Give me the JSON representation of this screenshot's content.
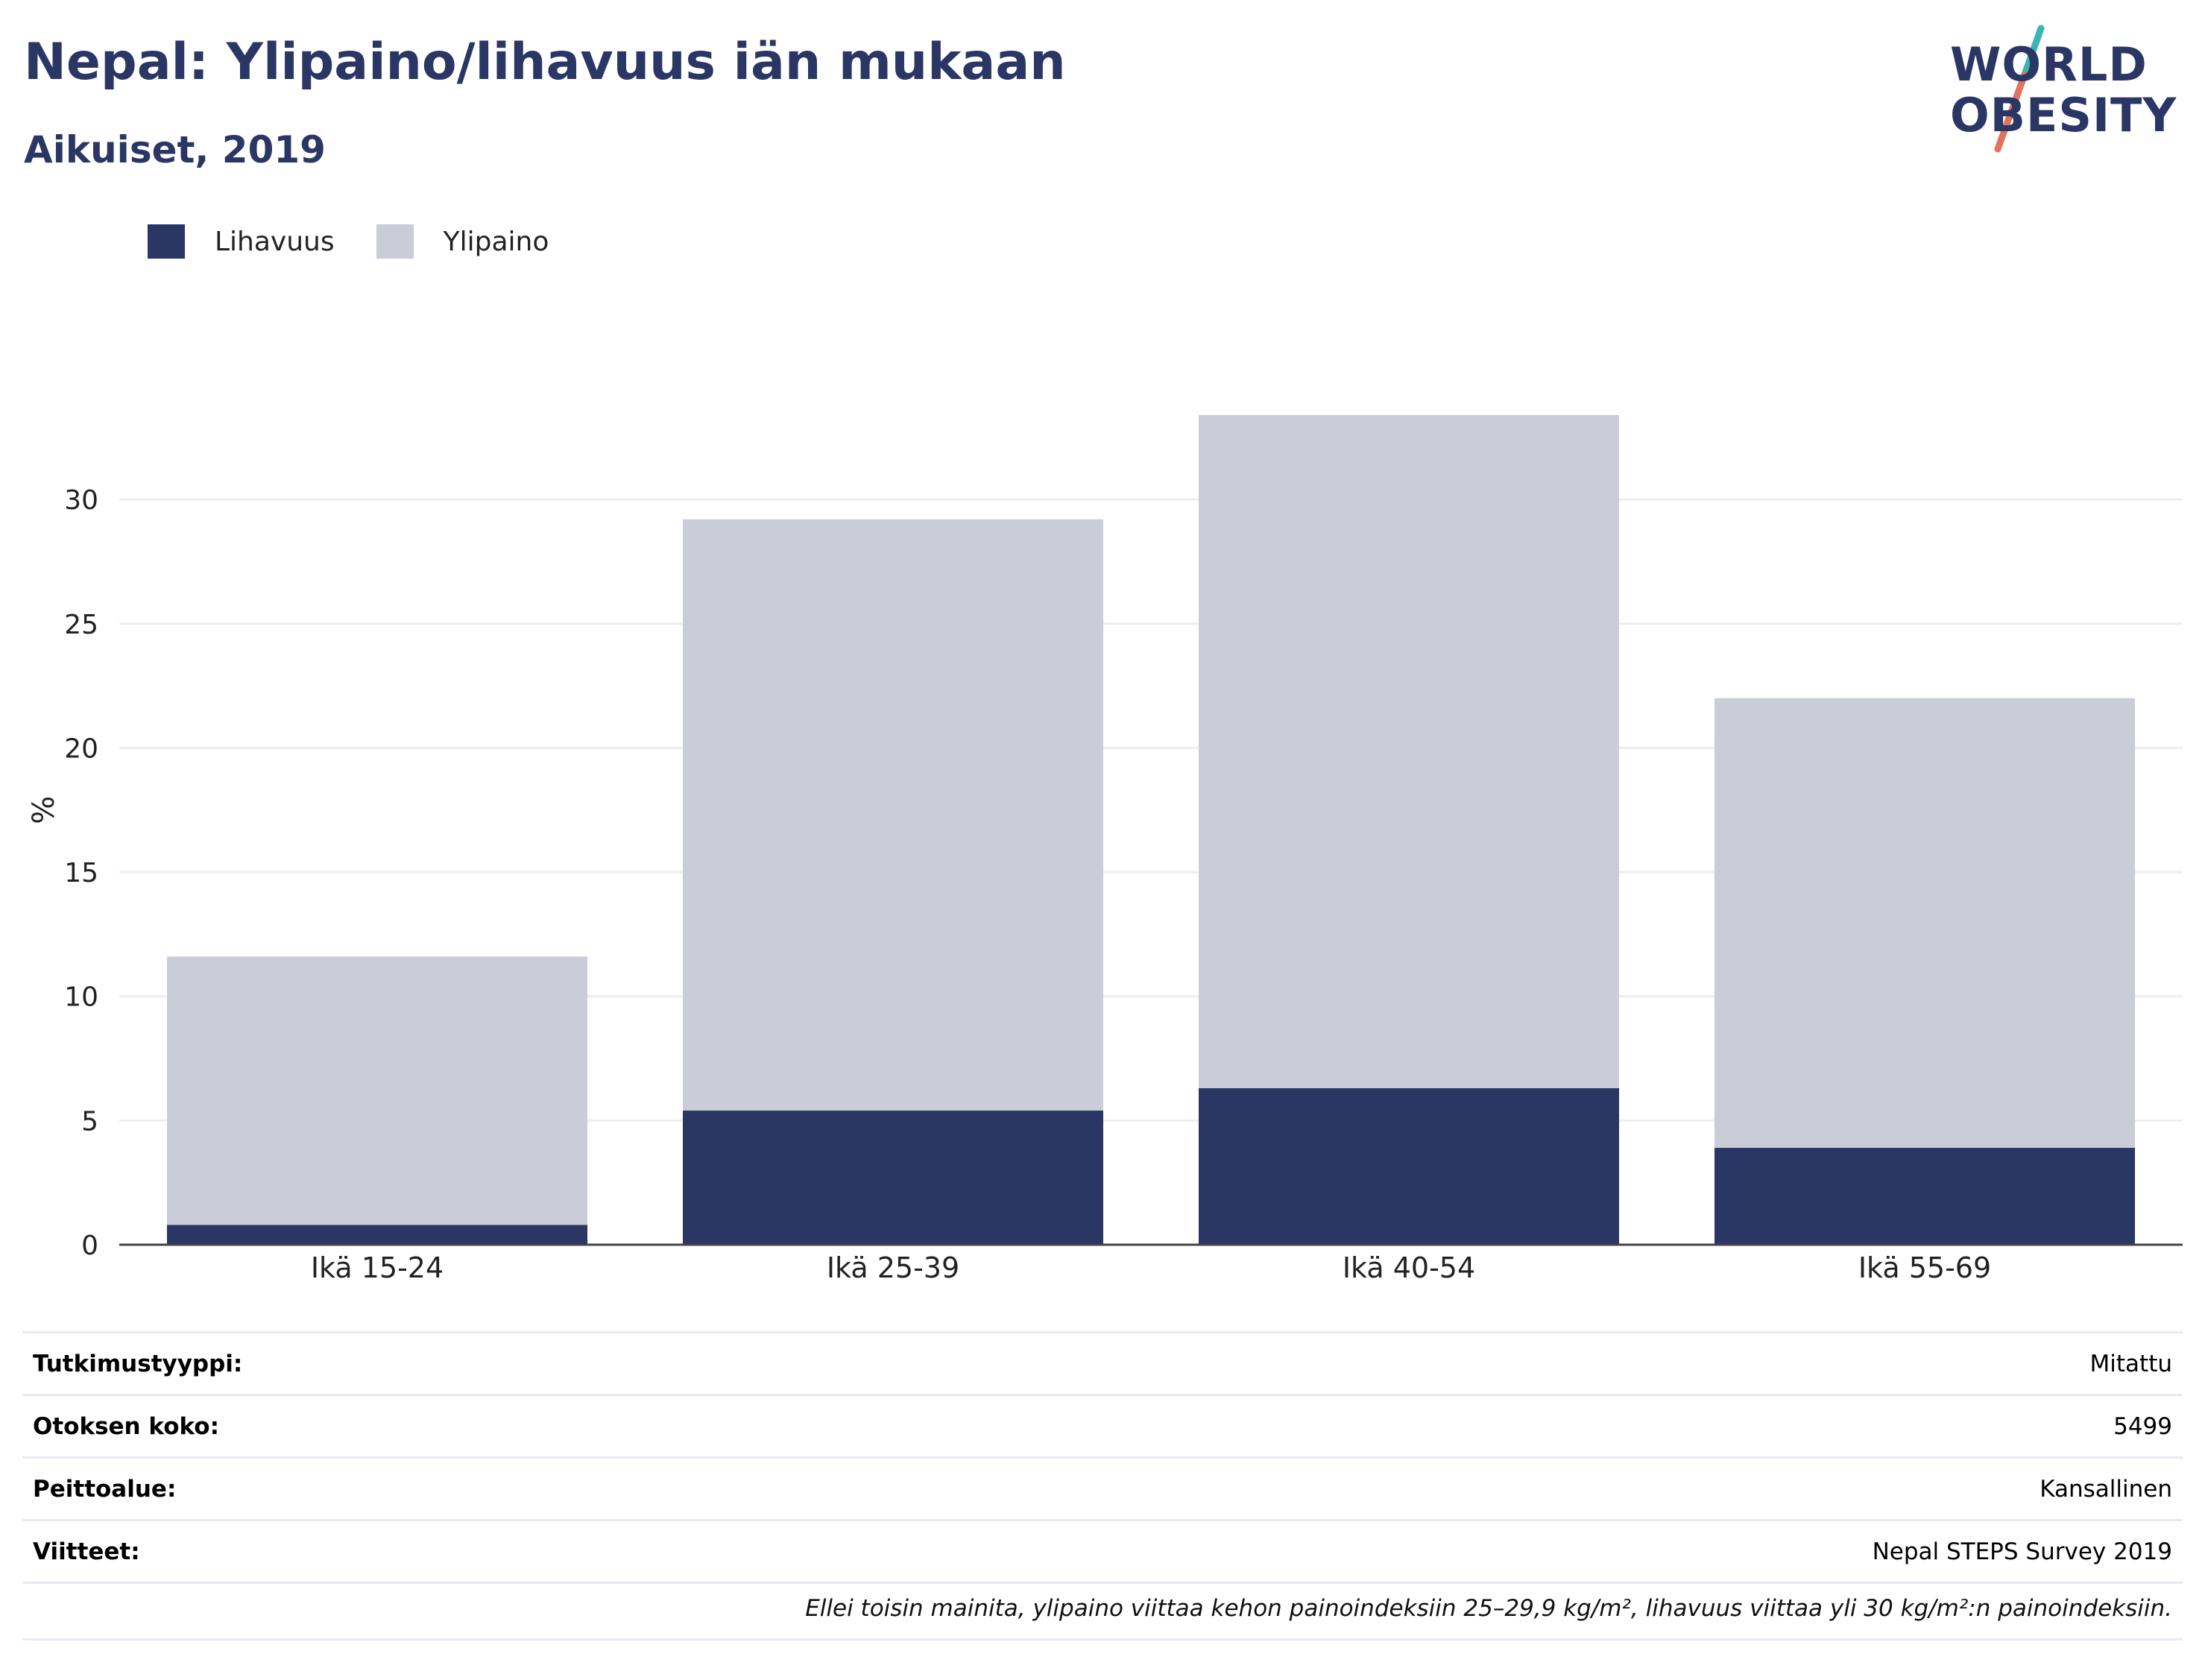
{
  "header": {
    "title": "Nepal: Ylipaino/lihavuus iän mukaan",
    "subtitle": "Aikuiset, 2019"
  },
  "logo": {
    "line1": "WORLD",
    "line2": "OBESITY",
    "slash_colors": [
      "#39b5b2",
      "#e2725b"
    ]
  },
  "legend": [
    {
      "label": "Lihavuus",
      "color": "#2a3664"
    },
    {
      "label": "Ylipaino",
      "color": "#cacdd8"
    }
  ],
  "chart_data": {
    "type": "bar",
    "stacked": true,
    "categories": [
      "Ikä 15-24",
      "Ikä 25-39",
      "Ikä 40-54",
      "Ikä 55-69"
    ],
    "series": [
      {
        "name": "Lihavuus",
        "color": "#2a3664",
        "values": [
          0.8,
          5.4,
          6.3,
          3.9
        ]
      },
      {
        "name": "Ylipaino",
        "color": "#cacdd8",
        "values": [
          10.8,
          23.8,
          27.1,
          18.1
        ]
      }
    ],
    "totals": [
      11.6,
      29.2,
      33.4,
      22.0
    ],
    "ylabel": "%",
    "ylim": [
      0,
      35
    ],
    "yticks": [
      0,
      5,
      10,
      15,
      20,
      25,
      30
    ],
    "grid": true,
    "legend_position": "top-left"
  },
  "info": [
    {
      "key": "Tutkimustyyppi:",
      "value": "Mitattu"
    },
    {
      "key": "Otoksen koko:",
      "value": "5499"
    },
    {
      "key": "Peittoalue:",
      "value": "Kansallinen"
    },
    {
      "key": "Viitteet:",
      "value": "Nepal STEPS Survey 2019"
    }
  ],
  "note": "Ellei toisin mainita, ylipaino viittaa kehon painoindeksiin 25–29,9 kg/m², lihavuus viittaa yli 30 kg/m²:n painoindeksiin."
}
